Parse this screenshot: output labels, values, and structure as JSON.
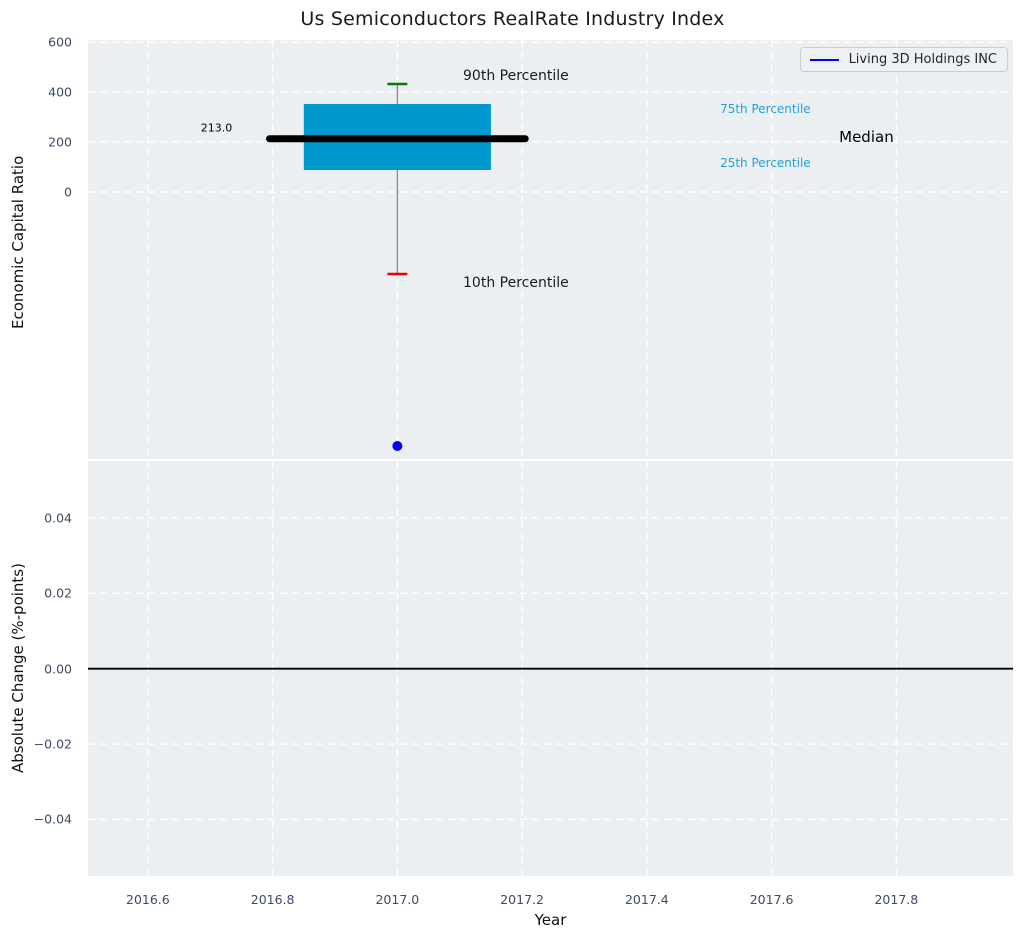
{
  "title": "Us Semiconductors RealRate Industry Index",
  "legend": {
    "label": "Living 3D Holdings INC",
    "line_color": "#0000ff"
  },
  "colors": {
    "background": "#eceff1",
    "grid": "#ffffff",
    "tick_label": "#3d4c63",
    "box_fill": "#0099cd",
    "median_line": "#000000",
    "whisker": "#888888",
    "p90_cap": "#008000",
    "p10_cap": "#ee0000",
    "company_point": "#0000ff",
    "percentile_text": "#1ca3d9",
    "zero_line": "#000000"
  },
  "chart_data": [
    {
      "type": "box",
      "title": "Us Semiconductors RealRate Industry Index",
      "ylabel": "Economic Capital Ratio",
      "xlim": [
        2016.504,
        2017.987
      ],
      "ylim": [
        -1068,
        608
      ],
      "yticks": [
        0,
        200,
        400,
        600
      ],
      "ytick_labels": [
        "0",
        "200",
        "400",
        "600"
      ],
      "xticks": [
        2016.6,
        2016.8,
        2017.0,
        2017.2,
        2017.4,
        2017.6,
        2017.8
      ],
      "grid": true,
      "legend_entries": [
        "Living 3D Holdings INC"
      ],
      "box": {
        "x": 2017.0,
        "median": 213.0,
        "q1": 88,
        "q3": 352,
        "p10": -328,
        "p90": 432,
        "box_halfwidth_years": 0.15,
        "median_halfwidth_years": 0.205,
        "cap_halfwidth_years": 0.016
      },
      "company_point": {
        "name": "Living 3D Holdings INC",
        "x": 2017.0,
        "y": -1016
      },
      "annotations": [
        {
          "id": "median-value-label",
          "text": "213.0",
          "x": 2016.71,
          "y": 256,
          "color": "#000000",
          "size": 11
        },
        {
          "id": "p90-label",
          "text": "90th Percentile",
          "x": 2017.19,
          "y": 464,
          "color": "#1a1a1a",
          "size": 14
        },
        {
          "id": "p10-label",
          "text": "10th Percentile",
          "x": 2017.19,
          "y": -364,
          "color": "#1a1a1a",
          "size": 14
        },
        {
          "id": "p75-label",
          "text": "75th Percentile",
          "x": 2017.59,
          "y": 332,
          "color": "#1ca3d9",
          "size": 12
        },
        {
          "id": "p25-label",
          "text": "25th Percentile",
          "x": 2017.59,
          "y": 116,
          "color": "#1ca3d9",
          "size": 12
        },
        {
          "id": "median-label",
          "text": "Median",
          "x": 2017.752,
          "y": 220,
          "color": "#000000",
          "size": 15
        }
      ]
    },
    {
      "type": "line",
      "ylabel": "Absolute Change (%-points)",
      "xlabel": "Year",
      "xlim": [
        2016.504,
        2017.987
      ],
      "ylim": [
        -0.055,
        0.0551
      ],
      "yticks": [
        -0.04,
        -0.02,
        0,
        0.02,
        0.04
      ],
      "ytick_labels": [
        "−0.04",
        "−0.02",
        "0.00",
        "0.02",
        "0.04"
      ],
      "xticks": [
        2016.6,
        2016.8,
        2017.0,
        2017.2,
        2017.4,
        2017.6,
        2017.8
      ],
      "xtick_labels": [
        "2016.6",
        "2016.8",
        "2017.0",
        "2017.2",
        "2017.4",
        "2017.6",
        "2017.8"
      ],
      "grid": true,
      "zero_line": 0.0,
      "series": []
    }
  ]
}
